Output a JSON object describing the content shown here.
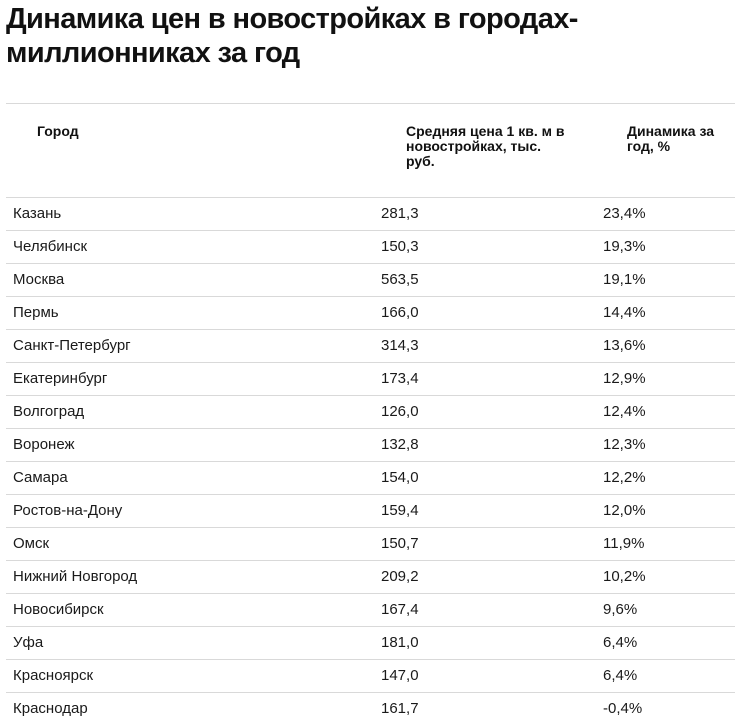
{
  "title": "Динамика цен в новостройках в городах-миллионниках за год",
  "table": {
    "headers": {
      "city": "Город",
      "price": "Средняя цена 1 кв. м в новостройках, тыс. руб.",
      "dynamics": "Динамика за год, %"
    },
    "rows": [
      {
        "city": "Казань",
        "price": "281,3",
        "dynamics": "23,4%"
      },
      {
        "city": "Челябинск",
        "price": "150,3",
        "dynamics": "19,3%"
      },
      {
        "city": "Москва",
        "price": "563,5",
        "dynamics": "19,1%"
      },
      {
        "city": "Пермь",
        "price": "166,0",
        "dynamics": "14,4%"
      },
      {
        "city": "Санкт-Петербург",
        "price": "314,3",
        "dynamics": "13,6%"
      },
      {
        "city": "Екатеринбург",
        "price": "173,4",
        "dynamics": "12,9%"
      },
      {
        "city": "Волгоград",
        "price": "126,0",
        "dynamics": "12,4%"
      },
      {
        "city": "Воронеж",
        "price": "132,8",
        "dynamics": "12,3%"
      },
      {
        "city": "Самара",
        "price": "154,0",
        "dynamics": "12,2%"
      },
      {
        "city": "Ростов-на-Дону",
        "price": "159,4",
        "dynamics": "12,0%"
      },
      {
        "city": "Омск",
        "price": "150,7",
        "dynamics": "11,9%"
      },
      {
        "city": "Нижний Новгород",
        "price": "209,2",
        "dynamics": "10,2%"
      },
      {
        "city": "Новосибирск",
        "price": "167,4",
        "dynamics": "9,6%"
      },
      {
        "city": "Уфа",
        "price": "181,0",
        "dynamics": "6,4%"
      },
      {
        "city": "Красноярск",
        "price": "147,0",
        "dynamics": "6,4%"
      },
      {
        "city": "Краснодар",
        "price": "161,7",
        "dynamics": "-0,4%"
      }
    ]
  }
}
